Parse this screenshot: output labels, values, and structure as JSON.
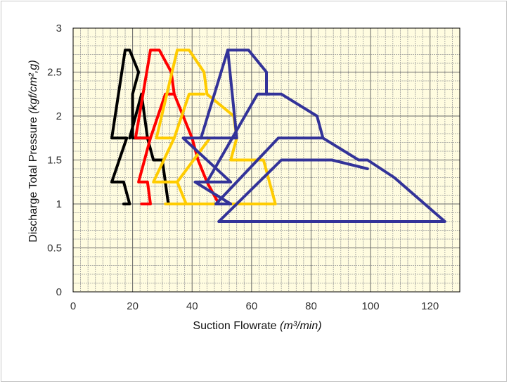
{
  "chart_data": {
    "type": "line",
    "xlabel": "Suction Flowrate",
    "xlabel_unit": "(m³/min)",
    "ylabel": "Discharge Total Pressure",
    "ylabel_unit": "(kgf/cm²,g)",
    "xlim": [
      0,
      130
    ],
    "ylim": [
      0,
      3
    ],
    "x_ticks": [
      "0",
      "20",
      "40",
      "60",
      "80",
      "100",
      "120"
    ],
    "y_ticks": [
      "0",
      "0.5",
      "1",
      "1.5",
      "2",
      "2.5",
      "3"
    ],
    "grid": true,
    "plot_background": "#fffce0",
    "series": [
      {
        "color": "#000000",
        "points": [
          [
            17,
            1.0
          ],
          [
            19,
            1.0
          ],
          [
            17,
            1.25
          ],
          [
            13,
            1.25
          ],
          [
            18,
            1.75
          ],
          [
            13,
            1.75
          ],
          [
            17.5,
            2.75
          ],
          [
            19,
            2.75
          ],
          [
            22,
            2.5
          ],
          [
            20,
            2.25
          ],
          [
            20,
            1.75
          ],
          [
            25,
            1.75
          ],
          [
            27,
            1.5
          ],
          [
            30,
            1.5
          ],
          [
            32,
            1.0
          ]
        ]
      },
      {
        "color": "#000000",
        "points": [
          [
            19,
            1.75
          ],
          [
            23,
            2.25
          ],
          [
            25,
            1.75
          ]
        ]
      },
      {
        "color": "#ff0000",
        "points": [
          [
            23,
            1.0
          ],
          [
            26,
            1.0
          ],
          [
            25,
            1.25
          ],
          [
            22,
            1.25
          ],
          [
            26,
            1.75
          ],
          [
            21,
            1.75
          ],
          [
            26,
            2.75
          ],
          [
            29,
            2.75
          ],
          [
            33,
            2.5
          ],
          [
            34,
            2.25
          ],
          [
            40,
            1.75
          ],
          [
            42,
            1.5
          ],
          [
            45,
            1.25
          ],
          [
            49,
            1.0
          ]
        ]
      },
      {
        "color": "#ff0000",
        "points": [
          [
            26,
            1.75
          ],
          [
            31,
            2.25
          ],
          [
            34,
            2.25
          ]
        ]
      },
      {
        "color": "#ffcc00",
        "points": [
          [
            31,
            1.0
          ],
          [
            38,
            1.0
          ],
          [
            35,
            1.25
          ],
          [
            27,
            1.25
          ],
          [
            34,
            1.75
          ],
          [
            28,
            1.75
          ],
          [
            35,
            2.75
          ],
          [
            39,
            2.75
          ],
          [
            44,
            2.5
          ],
          [
            45,
            2.25
          ],
          [
            54,
            2.0
          ],
          [
            55,
            1.75
          ],
          [
            53,
            1.5
          ],
          [
            64,
            1.5
          ],
          [
            68,
            1.0
          ],
          [
            38,
            1.0
          ]
        ]
      },
      {
        "color": "#ffcc00",
        "points": [
          [
            34,
            1.75
          ],
          [
            39,
            2.25
          ],
          [
            44,
            2.25
          ]
        ]
      },
      {
        "color": "#ffcc00",
        "points": [
          [
            35,
            1.25
          ],
          [
            46,
            1.75
          ]
        ]
      },
      {
        "color": "#333399",
        "points": [
          [
            48,
            1.0
          ],
          [
            53,
            1.0
          ],
          [
            41,
            1.25
          ],
          [
            53,
            1.25
          ],
          [
            37,
            1.75
          ],
          [
            55,
            1.75
          ],
          [
            52,
            2.75
          ],
          [
            59,
            2.75
          ],
          [
            65,
            2.5
          ],
          [
            65,
            2.25
          ],
          [
            70,
            2.25
          ],
          [
            82,
            2.0
          ],
          [
            84,
            1.75
          ],
          [
            96,
            1.5
          ],
          [
            99,
            1.5
          ],
          [
            108,
            1.3
          ],
          [
            125,
            0.8
          ],
          [
            49,
            0.8
          ]
        ]
      },
      {
        "color": "#333399",
        "points": [
          [
            43,
            1.75
          ],
          [
            52,
            2.75
          ]
        ]
      },
      {
        "color": "#333399",
        "points": [
          [
            45,
            1.25
          ],
          [
            62,
            2.25
          ],
          [
            66,
            2.25
          ]
        ]
      },
      {
        "color": "#333399",
        "points": [
          [
            48,
            1.0
          ],
          [
            69,
            1.75
          ],
          [
            84,
            1.75
          ]
        ]
      },
      {
        "color": "#333399",
        "points": [
          [
            49,
            0.8
          ],
          [
            70,
            1.5
          ],
          [
            87,
            1.5
          ],
          [
            99,
            1.4
          ]
        ]
      }
    ]
  }
}
